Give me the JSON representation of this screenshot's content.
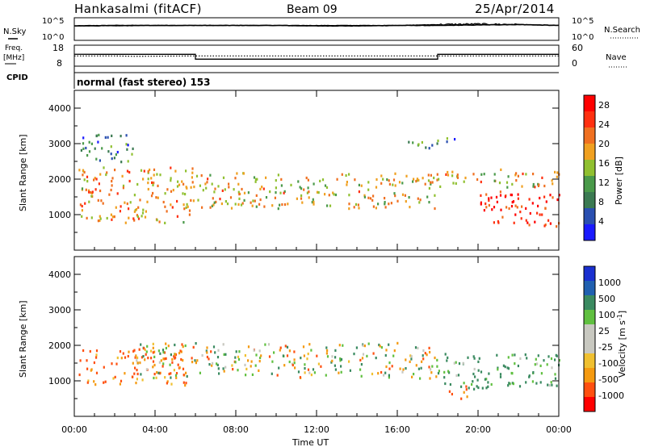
{
  "header": {
    "station": "Hankasalmi (fitACF)",
    "beam": "Beam 09",
    "date": "25/Apr/2014"
  },
  "status_panels": {
    "nsky_label": "N.Sky",
    "nsearch_label": "N.Search",
    "nsky_ticks": [
      "10^5",
      "10^0"
    ],
    "nsearch_ticks": [
      "10^5",
      "10^0"
    ],
    "freq_label_1": "Freq.",
    "freq_label_2": "[MHz]",
    "freq_ticks": [
      "18",
      "8"
    ],
    "nave_ticks": [
      "60",
      "0"
    ],
    "nave_label": "Nave",
    "cpid_label": "CPID",
    "cpid_text": "normal (fast stereo) 153"
  },
  "colors": {
    "power": [
      "#1a1aff",
      "#2a4fb0",
      "#3b7a52",
      "#4a9a4a",
      "#90c030",
      "#f0a020",
      "#f07020",
      "#ff3010",
      "#ff0000"
    ],
    "velocity": [
      "#ff0000",
      "#ff5010",
      "#f59a10",
      "#f0c030",
      "#c8c8c0",
      "#c8c8c0",
      "#60c040",
      "#3a8a60",
      "#2060b0",
      "#1a30d0"
    ],
    "grey": "#c8c8c0"
  },
  "chart_data": [
    {
      "type": "line",
      "panel": "noise",
      "x": [
        0,
        2,
        4,
        6,
        8,
        10,
        12,
        14,
        16,
        18,
        20,
        22,
        24
      ],
      "series": [
        {
          "name": "N.Sky",
          "values": [
            3.2,
            3.3,
            3.3,
            3.3,
            3.3,
            3.3,
            3.2,
            3.2,
            3.3,
            3.3,
            3.4,
            3.5,
            3.3
          ]
        },
        {
          "name": "N.Search",
          "values": [
            3.2,
            3.2,
            3.3,
            3.3,
            3.3,
            3.3,
            3.3,
            3.3,
            3.3,
            3.5,
            3.6,
            3.5,
            3.3
          ]
        }
      ]
    },
    {
      "type": "line",
      "panel": "frequency",
      "x": [
        0,
        2,
        3,
        6,
        8,
        12,
        18,
        20,
        24
      ],
      "series": [
        {
          "name": "Freq.",
          "values": [
            12.9,
            12.9,
            12.7,
            12.9,
            12.9,
            12.9,
            12.9,
            12.9,
            12.9
          ]
        },
        {
          "name": "Nave",
          "values": [
            34,
            34,
            34,
            20,
            20,
            20,
            34,
            34,
            34
          ]
        }
      ]
    },
    {
      "type": "heatmap",
      "panel": "power",
      "xlabel": "Time UT",
      "ylabel": "Slant Range [km]",
      "colorbar_label": "Power [dB]",
      "xlim": [
        0,
        24
      ],
      "ylim": [
        0,
        4500
      ],
      "x_ticks": [
        "00:00",
        "04:00",
        "08:00",
        "12:00",
        "16:00",
        "20:00",
        "00:00"
      ],
      "y_ticks": [
        "1000",
        "2000",
        "3000",
        "4000"
      ],
      "colorbar_ticks": [
        "4",
        "8",
        "12",
        "16",
        "20",
        "24",
        "28"
      ],
      "colorbar_range": [
        0,
        30
      ],
      "echo_bands": [
        {
          "t0": 0.2,
          "t1": 6.0,
          "r0": 800,
          "r1": 2400,
          "level": 20
        },
        {
          "t0": 6.0,
          "t1": 18.0,
          "r0": 1200,
          "r1": 2200,
          "level": 18
        },
        {
          "t0": 0.3,
          "t1": 3.0,
          "r0": 2500,
          "r1": 3300,
          "level": 8
        },
        {
          "t0": 16.5,
          "t1": 19.0,
          "r0": 2900,
          "r1": 3200,
          "level": 8
        },
        {
          "t0": 20.0,
          "t1": 24.0,
          "r0": 700,
          "r1": 1700,
          "level": 28
        },
        {
          "t0": 18.0,
          "t1": 24.0,
          "r0": 1800,
          "r1": 2300,
          "level": 18
        }
      ]
    },
    {
      "type": "heatmap",
      "panel": "velocity",
      "xlabel": "Time UT",
      "ylabel": "Slant Range [km]",
      "colorbar_label": "Velocity [m s^-1]",
      "xlim": [
        0,
        24
      ],
      "ylim": [
        0,
        4500
      ],
      "x_ticks": [
        "00:00",
        "04:00",
        "08:00",
        "12:00",
        "16:00",
        "20:00",
        "00:00"
      ],
      "y_ticks": [
        "1000",
        "2000",
        "3000",
        "4000"
      ],
      "colorbar_ticks": [
        "1000",
        "500",
        "100",
        "25",
        "-25",
        "-100",
        "-500",
        "-1000"
      ],
      "echo_bands": [
        {
          "t0": 0.2,
          "t1": 5.5,
          "r0": 900,
          "r1": 1900,
          "velocity": -150
        },
        {
          "t0": 3.0,
          "t1": 18.0,
          "r0": 1100,
          "r1": 2100,
          "velocity": 0
        },
        {
          "t0": 18.0,
          "t1": 24.0,
          "r0": 800,
          "r1": 1800,
          "velocity": 150
        },
        {
          "t0": 18.5,
          "t1": 19.5,
          "r0": 500,
          "r1": 900,
          "velocity": -200
        }
      ]
    }
  ]
}
